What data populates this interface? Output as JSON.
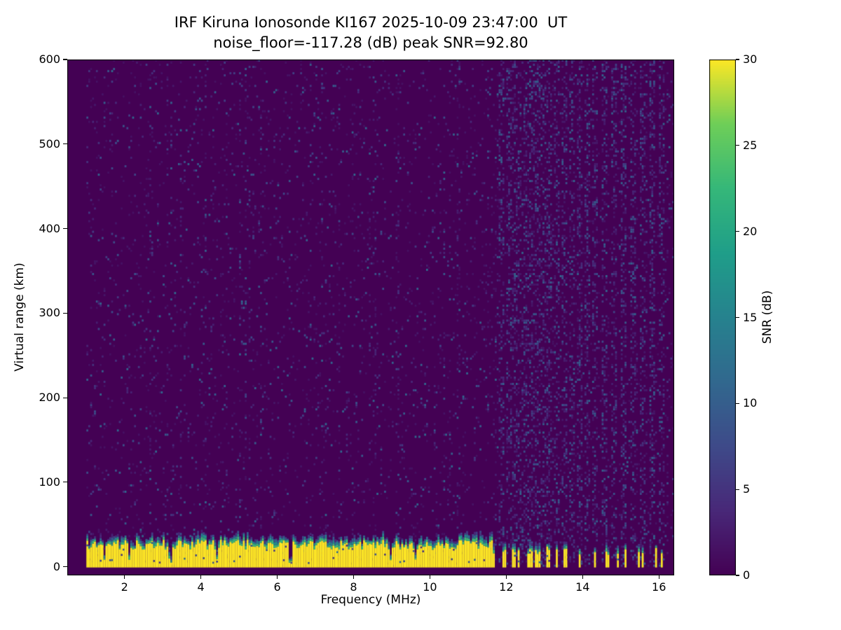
{
  "chart_data": {
    "type": "heatmap",
    "title": "IRF Kiruna Ionosonde KI167 2025-10-09 23:47:00  UT",
    "subtitle": "noise_floor=-117.28 (dB) peak SNR=92.80",
    "station": "KI167",
    "timestamp_ut": "2025-10-09 23:47:00",
    "noise_floor_db": -117.28,
    "peak_snr_db": 92.8,
    "xlabel": "Frequency (MHz)",
    "ylabel": "Virtual range (km)",
    "colorbar_label": "SNR (dB)",
    "colormap": "viridis",
    "xlim": [
      0.5,
      16.4
    ],
    "ylim": [
      -10.2,
      600
    ],
    "clim": [
      0,
      30
    ],
    "x_ticks": [
      2,
      4,
      6,
      8,
      10,
      12,
      14,
      16
    ],
    "y_ticks": [
      0,
      100,
      200,
      300,
      400,
      500,
      600
    ],
    "colorbar_ticks": [
      0,
      5,
      10,
      15,
      20,
      25,
      30
    ],
    "grid": false,
    "legend": "colorbar-right",
    "content_summary": "Ionogram: dark viridis background (SNR ~0 dB) with sparse low-SNR speckle noise over 0-600 km virtual range; saturated yellow ground-clutter band (SNR >= 30 dB) from 0 to ~20-32 km across 1.0-11.6 MHz with ragged green/teal upper fringe and a few dark notches; band becomes an intermittent comb from ~11.6-13.1 MHz and isolated spikes above 13.1 MHz; faint vertical interference stripes in the 11.8-16.4 MHz background.",
    "procedural": {
      "seed": 20251009,
      "freq_start": 1.0,
      "freq_end": 16.4,
      "freq_step": 0.05,
      "range_step_km": 2.5,
      "noise_base_density": 0.055,
      "noisy_column_density": 0.14,
      "stripe_density": 0.3,
      "interference_stripe_freqs": [
        11.85,
        12.05,
        12.2,
        12.35,
        12.5,
        12.65,
        12.8,
        12.95,
        13.1,
        13.3,
        13.5,
        13.7,
        13.9,
        14.1,
        14.3,
        14.55,
        14.8,
        15.05,
        15.3,
        15.55,
        15.8,
        16.05
      ],
      "ground_band": {
        "solid_until_mhz": 11.62,
        "comb_until_mhz": 13.15,
        "spike_freqs": [
          13.3,
          13.5,
          13.55,
          13.9,
          14.3,
          14.6,
          14.65,
          14.9,
          15.1,
          15.45,
          15.55,
          15.9,
          16.05
        ],
        "top_km_min": 20,
        "top_km_max": 32,
        "notch_freqs": [
          1.45,
          2.1,
          3.15,
          3.2,
          4.4,
          6.3,
          6.35,
          8.95,
          9.6
        ]
      }
    }
  }
}
